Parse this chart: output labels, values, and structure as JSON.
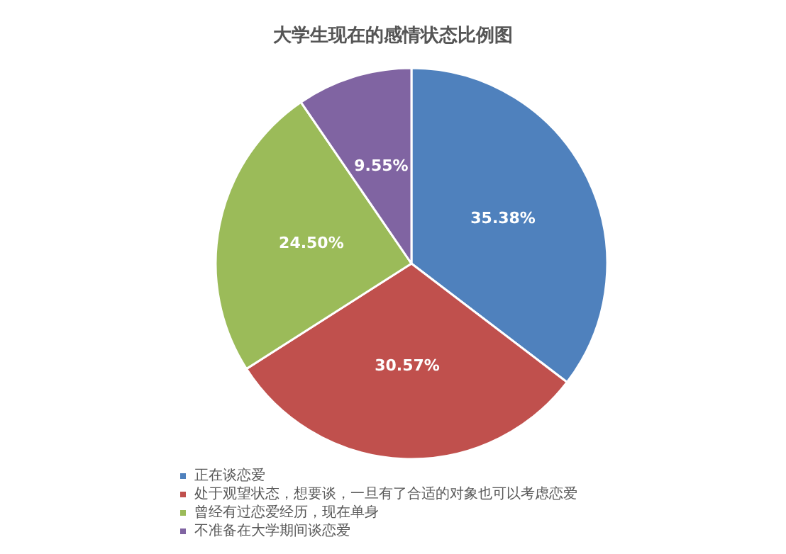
{
  "chart_data": {
    "type": "pie",
    "title": "大学生现在的感情状态比例图",
    "categories": [
      "正在谈恋爱",
      "处于观望状态，想要谈，一旦有了合适的对象也可以考虑恋爱",
      "曾经有过恋爱经历，现在单身",
      "不准备在大学期间谈恋爱"
    ],
    "values": [
      35.38,
      30.57,
      24.5,
      9.55
    ],
    "colors": [
      "#4f81bd",
      "#c0504d",
      "#9bbb59",
      "#8064a2"
    ],
    "value_labels": [
      "35.38%",
      "30.57%",
      "24.50%",
      "9.55%"
    ],
    "legend": "bottom left"
  }
}
